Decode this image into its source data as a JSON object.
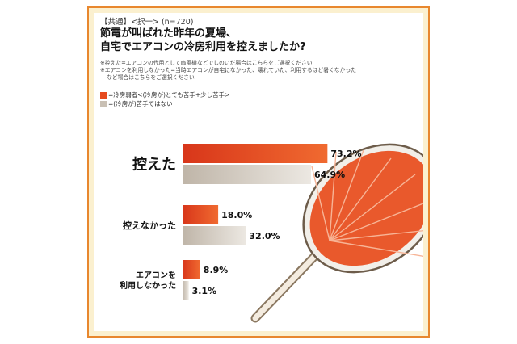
{
  "header": {
    "tag": "【共通】<択一> (n=720)",
    "title_line1": "節電が叫ばれた昨年の夏場、",
    "title_line2": "自宅でエアコンの冷房利用を控えましたか?",
    "note1": "※控えた=エアコンの代用として扇風機などでしのいだ場合はこちらをご選択ください",
    "note2": "※エアコンを利用しなかった=当時エアコンが自宅になかった、壊れていた、利用するほど暑くなかった",
    "note3": "など場合はこちらをご選択ください"
  },
  "legend": [
    {
      "label": "=冷房弱者<(冷房が)とても苦手+少し苦手>",
      "color": "#e64a1e"
    },
    {
      "label": "=(冷房が)苦手ではない",
      "color": "#c9c0b4"
    }
  ],
  "chart_data": {
    "type": "bar",
    "orientation": "horizontal",
    "categories": [
      "控えた",
      "控えなかった",
      "エアコンを\n利用しなかった"
    ],
    "series": [
      {
        "name": "=冷房弱者<(冷房が)とても苦手+少し苦手>",
        "values": [
          73.2,
          18.0,
          8.9
        ],
        "labels": [
          "73.2%",
          "18.0%",
          "8.9%"
        ]
      },
      {
        "name": "=(冷房が)苦手ではない",
        "values": [
          64.9,
          32.0,
          3.1
        ],
        "labels": [
          "64.9%",
          "32.0%",
          "3.1%"
        ]
      }
    ],
    "xlim": [
      0,
      100
    ],
    "grid": false,
    "legend_position": "top-left"
  }
}
